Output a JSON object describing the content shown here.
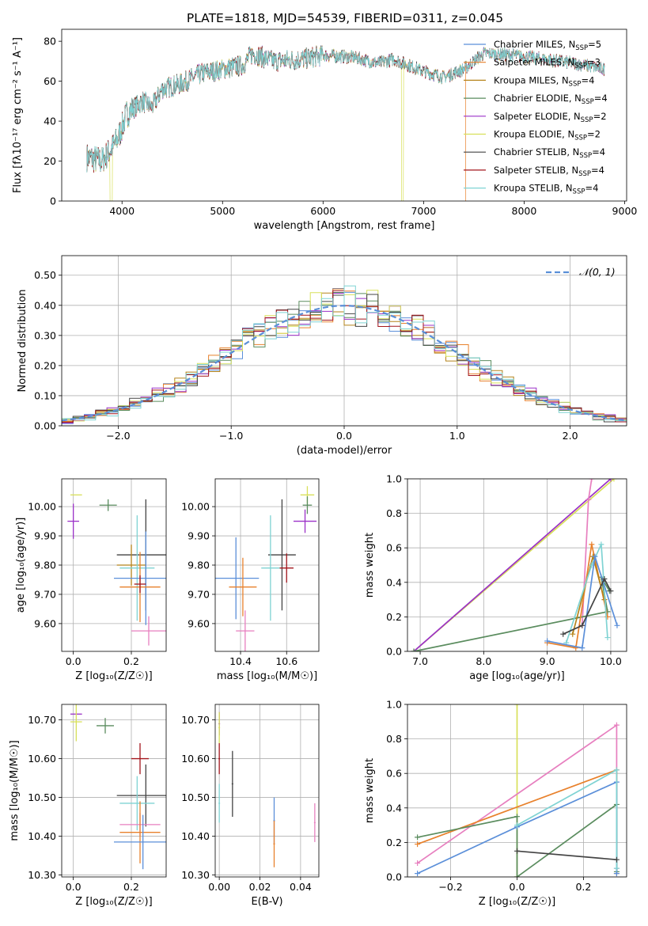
{
  "figure": {
    "title": "PLATE=1818, MJD=54539, FIBERID=0311, z=0.045",
    "colors": {
      "Chabrier MILES": "#5b8fd9",
      "Salpeter MILES": "#e8812c",
      "Kroupa MILES": "#b5831a",
      "Chabrier ELODIE": "#5a8c5e",
      "Salpeter ELODIE": "#9b30c8",
      "Kroupa ELODIE": "#d8e05a",
      "Chabrier STELIB": "#444444",
      "Salpeter STELIB": "#a3161c",
      "Kroupa STELIB": "#7fd3d3",
      "normal": "#5a8fd8",
      "pink": "#e77fbf"
    }
  },
  "chart_data": [
    {
      "id": "spectrum",
      "type": "line",
      "xlabel": "wavelength [Angstrom, rest frame]",
      "ylabel": "Flux [fλ10⁻¹⁷ erg cm⁻² s⁻¹ A⁻¹]",
      "xlim": [
        3400,
        9020
      ],
      "ylim": [
        0,
        86
      ],
      "xticks": [
        4000,
        5000,
        6000,
        7000,
        8000,
        9000
      ],
      "yticks": [
        0,
        20,
        40,
        60,
        80
      ],
      "legend_position": "upper-right",
      "series": [
        {
          "name": "Chabrier MILES, N",
          "sub": "SSP",
          "suffix": "=5"
        },
        {
          "name": "Salpeter MILES, N",
          "sub": "SSP",
          "suffix": "=3"
        },
        {
          "name": "Kroupa MILES, N",
          "sub": "SSP",
          "suffix": "=4"
        },
        {
          "name": "Chabrier ELODIE, N",
          "sub": "SSP",
          "suffix": "=4"
        },
        {
          "name": "Salpeter ELODIE, N",
          "sub": "SSP",
          "suffix": "=2"
        },
        {
          "name": "Kroupa ELODIE, N",
          "sub": "SSP",
          "suffix": "=2"
        },
        {
          "name": "Chabrier STELIB, N",
          "sub": "SSP",
          "suffix": "=4"
        },
        {
          "name": "Salpeter STELIB, N",
          "sub": "SSP",
          "suffix": "=4"
        },
        {
          "name": "Kroupa STELIB, N",
          "sub": "SSP",
          "suffix": "=4"
        }
      ],
      "continuum": [
        [
          3650,
          22
        ],
        [
          3800,
          20
        ],
        [
          3950,
          30
        ],
        [
          4050,
          44
        ],
        [
          4200,
          50
        ],
        [
          4300,
          47
        ],
        [
          4400,
          56
        ],
        [
          4600,
          59
        ],
        [
          4800,
          64
        ],
        [
          5000,
          66
        ],
        [
          5200,
          68
        ],
        [
          5300,
          74
        ],
        [
          5500,
          70
        ],
        [
          5800,
          71
        ],
        [
          6000,
          73
        ],
        [
          6300,
          72
        ],
        [
          6550,
          69
        ],
        [
          6700,
          71
        ],
        [
          7000,
          65
        ],
        [
          7200,
          62
        ],
        [
          7400,
          66
        ],
        [
          7600,
          74
        ],
        [
          7900,
          73
        ],
        [
          8200,
          71
        ],
        [
          8500,
          69
        ],
        [
          8800,
          66
        ]
      ]
    },
    {
      "id": "residuals",
      "type": "line",
      "xlabel": "(data-model)/error",
      "ylabel": "Normed distribution",
      "xlim": [
        -2.5,
        2.5
      ],
      "ylim": [
        0,
        0.565
      ],
      "xticks": [
        -2,
        -1,
        0,
        1,
        2
      ],
      "yticks": [
        0.0,
        0.1,
        0.2,
        0.3,
        0.4,
        0.5
      ],
      "grid": true,
      "legend": "𝒩(0, 1)",
      "legend_position": "upper-right",
      "bin_width": 0.1,
      "bin_start": -2.5
    },
    {
      "id": "age-vs-Z",
      "type": "scatter",
      "xlabel": "Z [log₁₀(Z/Z☉)]",
      "ylabel": "age  [log₁₀(age/yr)]",
      "xlim": [
        -0.04,
        0.32
      ],
      "ylim": [
        9.505,
        10.095
      ],
      "xticks": [
        0.0,
        0.2
      ],
      "yticks": [
        9.6,
        9.7,
        9.8,
        9.9,
        10.0
      ],
      "grid": true,
      "points": [
        {
          "s": "Kroupa ELODIE",
          "x": 0.01,
          "y": 10.04,
          "ex": 0.02,
          "ey": 0.0
        },
        {
          "s": "Chabrier ELODIE",
          "x": 0.12,
          "y": 10.005,
          "ex": 0.03,
          "ey": 0.02
        },
        {
          "s": "Salpeter ELODIE",
          "x": 0.0,
          "y": 9.95,
          "ex": 0.02,
          "ey": 0.06
        },
        {
          "s": "Chabrier STELIB",
          "x": 0.25,
          "y": 9.835,
          "ex": 0.1,
          "ey": 0.19
        },
        {
          "s": "Kroupa MILES",
          "x": 0.2,
          "y": 9.8,
          "ex": 0.05,
          "ey": 0.07
        },
        {
          "s": "Kroupa STELIB",
          "x": 0.22,
          "y": 9.79,
          "ex": 0.06,
          "ey": 0.18
        },
        {
          "s": "Chabrier MILES",
          "x": 0.25,
          "y": 9.755,
          "ex": 0.11,
          "ey": 0.16
        },
        {
          "s": "Salpeter MILES",
          "x": 0.23,
          "y": 9.725,
          "ex": 0.07,
          "ey": 0.12
        },
        {
          "s": "Salpeter STELIB",
          "x": 0.23,
          "y": 9.735,
          "ex": 0.02,
          "ey": 0.03
        },
        {
          "s": "pink",
          "x": 0.26,
          "y": 9.575,
          "ex": 0.06,
          "ey": 0.05
        }
      ]
    },
    {
      "id": "age-vs-mass",
      "type": "scatter",
      "xlabel": "mass [log₁₀(M/M☉)]",
      "xlim": [
        10.29,
        10.74
      ],
      "ylim": [
        9.505,
        10.095
      ],
      "xticks": [
        10.4,
        10.6
      ],
      "yticks": [
        9.6,
        9.7,
        9.8,
        9.9,
        10.0
      ],
      "grid": true,
      "points": [
        {
          "s": "Kroupa ELODIE",
          "x": 10.69,
          "y": 10.04,
          "ex": 0.03,
          "ey": 0.03
        },
        {
          "s": "Chabrier ELODIE",
          "x": 10.69,
          "y": 10.005,
          "ex": 0.02,
          "ey": 0.03
        },
        {
          "s": "Salpeter ELODIE",
          "x": 10.68,
          "y": 9.95,
          "ex": 0.05,
          "ey": 0.04
        },
        {
          "s": "Chabrier STELIB",
          "x": 10.58,
          "y": 9.835,
          "ex": 0.06,
          "ey": 0.19
        },
        {
          "s": "Kroupa STELIB",
          "x": 10.53,
          "y": 9.79,
          "ex": 0.04,
          "ey": 0.18
        },
        {
          "s": "Salpeter STELIB",
          "x": 10.6,
          "y": 9.79,
          "ex": 0.03,
          "ey": 0.05
        },
        {
          "s": "Chabrier MILES",
          "x": 10.38,
          "y": 9.755,
          "ex": 0.1,
          "ey": 0.14
        },
        {
          "s": "Salpeter MILES",
          "x": 10.41,
          "y": 9.725,
          "ex": 0.06,
          "ey": 0.1
        },
        {
          "s": "pink",
          "x": 10.42,
          "y": 9.575,
          "ex": 0.04,
          "ey": 0.07
        }
      ]
    },
    {
      "id": "weight-vs-age",
      "type": "line",
      "xlabel": "age  [log₁₀(age/yr)]",
      "ylabel": "mass weight",
      "xlim": [
        6.8,
        10.25
      ],
      "ylim": [
        0,
        1.0
      ],
      "xticks": [
        7,
        8,
        9,
        10
      ],
      "yticks": [
        0.0,
        0.2,
        0.4,
        0.6,
        0.8,
        1.0
      ],
      "grid": true,
      "series": [
        {
          "s": "Kroupa ELODIE",
          "points": [
            [
              6.9,
              0.0
            ],
            [
              10.05,
              1.0
            ]
          ]
        },
        {
          "s": "Salpeter ELODIE",
          "points": [
            [
              6.9,
              0.0
            ],
            [
              10.0,
              1.0
            ]
          ]
        },
        {
          "s": "pink",
          "points": [
            [
              9.55,
              0.15
            ],
            [
              9.65,
              0.88
            ],
            [
              9.7,
              1.0
            ]
          ]
        },
        {
          "s": "Chabrier ELODIE",
          "points": [
            [
              6.9,
              0.0
            ],
            [
              9.95,
              0.23
            ],
            [
              9.85,
              0.43
            ],
            [
              9.98,
              0.35
            ]
          ]
        },
        {
          "s": "Salpeter MILES",
          "points": [
            [
              9.0,
              0.05
            ],
            [
              9.45,
              0.02
            ],
            [
              9.7,
              0.62
            ],
            [
              9.95,
              0.2
            ]
          ]
        },
        {
          "s": "Kroupa MILES",
          "points": [
            [
              9.4,
              0.1
            ],
            [
              9.72,
              0.55
            ],
            [
              9.9,
              0.3
            ]
          ]
        },
        {
          "s": "Kroupa STELIB",
          "points": [
            [
              9.3,
              0.05
            ],
            [
              9.7,
              0.5
            ],
            [
              9.85,
              0.62
            ],
            [
              9.95,
              0.08
            ]
          ]
        },
        {
          "s": "Chabrier MILES",
          "points": [
            [
              9.0,
              0.06
            ],
            [
              9.55,
              0.02
            ],
            [
              9.75,
              0.55
            ],
            [
              10.1,
              0.15
            ]
          ]
        },
        {
          "s": "Chabrier STELIB",
          "points": [
            [
              9.25,
              0.1
            ],
            [
              9.55,
              0.15
            ],
            [
              9.9,
              0.42
            ],
            [
              10.0,
              0.35
            ]
          ]
        }
      ]
    },
    {
      "id": "mass-vs-Z",
      "type": "scatter",
      "xlabel": "Z [log₁₀(Z/Z☉)]",
      "ylabel": "mass [log₁₀(M/M☉)]",
      "xlim": [
        -0.04,
        0.32
      ],
      "ylim": [
        10.295,
        10.74
      ],
      "xticks": [
        0.0,
        0.2
      ],
      "yticks": [
        10.3,
        10.4,
        10.5,
        10.6,
        10.7
      ],
      "grid": true,
      "points": [
        {
          "s": "Salpeter ELODIE",
          "x": 0.01,
          "y": 10.715,
          "ex": 0.02,
          "ey": 0.0
        },
        {
          "s": "Kroupa ELODIE",
          "x": 0.01,
          "y": 10.695,
          "ex": 0.02,
          "ey": 0.05
        },
        {
          "s": "Chabrier ELODIE",
          "x": 0.11,
          "y": 10.685,
          "ex": 0.03,
          "ey": 0.02
        },
        {
          "s": "Salpeter STELIB",
          "x": 0.23,
          "y": 10.6,
          "ex": 0.03,
          "ey": 0.04
        },
        {
          "s": "Chabrier STELIB",
          "x": 0.25,
          "y": 10.505,
          "ex": 0.1,
          "ey": 0.08
        },
        {
          "s": "Kroupa STELIB",
          "x": 0.22,
          "y": 10.485,
          "ex": 0.06,
          "ey": 0.07
        },
        {
          "s": "pink",
          "x": 0.23,
          "y": 10.43,
          "ex": 0.07,
          "ey": 0.03
        },
        {
          "s": "Salpeter MILES",
          "x": 0.23,
          "y": 10.41,
          "ex": 0.07,
          "ey": 0.08
        },
        {
          "s": "Chabrier MILES",
          "x": 0.24,
          "y": 10.385,
          "ex": 0.1,
          "ey": 0.07
        }
      ]
    },
    {
      "id": "mass-vs-EBV",
      "type": "scatter",
      "xlabel": "E(B-V)",
      "xlim": [
        -0.002,
        0.049
      ],
      "ylim": [
        10.295,
        10.74
      ],
      "xticks": [
        0.0,
        0.02,
        0.04
      ],
      "yticks": [
        10.3,
        10.4,
        10.5,
        10.6,
        10.7
      ],
      "grid": true,
      "points": [
        {
          "s": "Salpeter ELODIE",
          "x": 0.0,
          "y": 10.69,
          "ex": 0.0,
          "ey": 0.03
        },
        {
          "s": "Kroupa ELODIE",
          "x": 0.0,
          "y": 10.68,
          "ex": 0.0,
          "ey": 0.04
        },
        {
          "s": "Salpeter STELIB",
          "x": 0.0,
          "y": 10.6,
          "ex": 0.0,
          "ey": 0.04
        },
        {
          "s": "Chabrier STELIB",
          "x": 0.0065,
          "y": 10.535,
          "ex": 0.0,
          "ey": 0.085
        },
        {
          "s": "Kroupa STELIB",
          "x": 0.0,
          "y": 10.485,
          "ex": 0.0,
          "ey": 0.05
        },
        {
          "s": "Chabrier MILES",
          "x": 0.027,
          "y": 10.44,
          "ex": 0.0,
          "ey": 0.06
        },
        {
          "s": "Salpeter MILES",
          "x": 0.027,
          "y": 10.38,
          "ex": 0.0,
          "ey": 0.06
        },
        {
          "s": "pink",
          "x": 0.047,
          "y": 10.435,
          "ex": 0.0,
          "ey": 0.05
        }
      ]
    },
    {
      "id": "weight-vs-Z",
      "type": "line",
      "xlabel": "Z [log₁₀(Z/Z☉)]",
      "ylabel": "mass weight",
      "xlim": [
        -0.33,
        0.33
      ],
      "ylim": [
        0,
        1.0
      ],
      "xticks": [
        -0.2,
        0.0,
        0.2
      ],
      "yticks": [
        0.0,
        0.2,
        0.4,
        0.6,
        0.8,
        1.0
      ],
      "grid": true,
      "series": [
        {
          "s": "Kroupa ELODIE",
          "points": [
            [
              0.0,
              1.0
            ],
            [
              0.0,
              0.0
            ]
          ]
        },
        {
          "s": "pink",
          "points": [
            [
              -0.3,
              0.08
            ],
            [
              0.3,
              0.88
            ],
            [
              0.3,
              0.05
            ]
          ]
        },
        {
          "s": "Salpeter MILES",
          "points": [
            [
              -0.3,
              0.19
            ],
            [
              0.3,
              0.62
            ],
            [
              0.3,
              0.02
            ]
          ]
        },
        {
          "s": "Chabrier ELODIE",
          "points": [
            [
              -0.3,
              0.23
            ],
            [
              0.0,
              0.35
            ],
            [
              0.0,
              0.0
            ],
            [
              0.3,
              0.42
            ],
            [
              0.3,
              0.03
            ]
          ]
        },
        {
          "s": "Chabrier MILES",
          "points": [
            [
              -0.3,
              0.02
            ],
            [
              0.0,
              0.29
            ],
            [
              0.3,
              0.55
            ],
            [
              0.3,
              0.02
            ]
          ]
        },
        {
          "s": "Kroupa STELIB",
          "points": [
            [
              0.0,
              0.3
            ],
            [
              0.3,
              0.62
            ],
            [
              0.3,
              0.05
            ]
          ]
        },
        {
          "s": "Chabrier STELIB",
          "points": [
            [
              0.0,
              0.15
            ],
            [
              0.3,
              0.1
            ]
          ]
        }
      ]
    }
  ]
}
